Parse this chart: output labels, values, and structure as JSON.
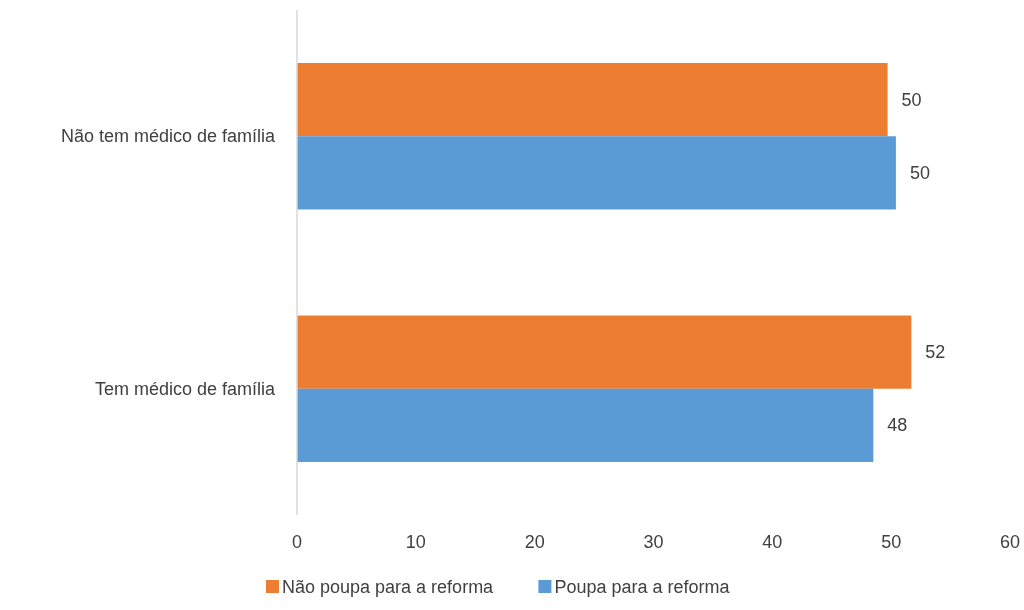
{
  "chart_data": {
    "type": "bar",
    "orientation": "horizontal",
    "categories": [
      "Não tem médico de família",
      "Tem médico de família"
    ],
    "series": [
      {
        "name": "Não poupa para a reforma",
        "color": "#ed7d31",
        "values": [
          49.7,
          51.7
        ],
        "value_labels": [
          "50",
          "52"
        ]
      },
      {
        "name": "Poupa para a reforma",
        "color": "#5b9bd5",
        "values": [
          50.4,
          48.5
        ],
        "value_labels": [
          "50",
          "48"
        ]
      }
    ],
    "xlim": [
      0,
      60
    ],
    "xticks": [
      0,
      10,
      20,
      30,
      40,
      50,
      60
    ],
    "grid": false,
    "legend": "bottom"
  }
}
